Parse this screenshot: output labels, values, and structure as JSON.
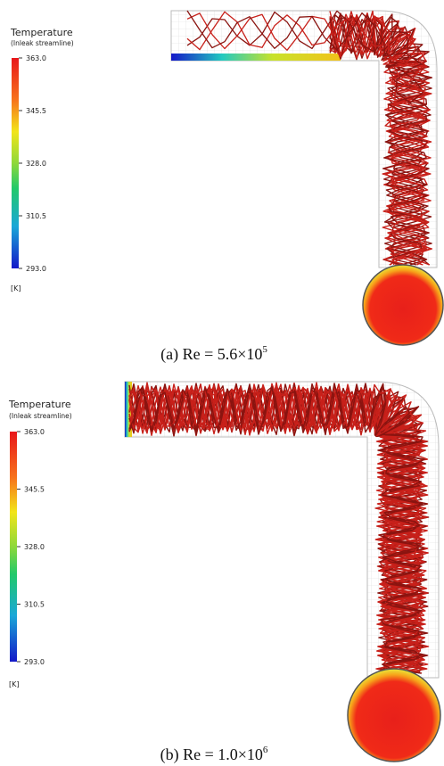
{
  "panels": [
    {
      "legend": {
        "title": "Temperature",
        "subtitle": "(Inleak streamline)",
        "ticks": [
          "363.0",
          "345.5",
          "328.0",
          "310.5",
          "293.0"
        ],
        "unit": "[K]"
      },
      "caption": {
        "text": "(a) Re = 5.6×10",
        "exponent": "5"
      }
    },
    {
      "legend": {
        "title": "Temperature",
        "subtitle": "(Inleak streamline)",
        "ticks": [
          "363.0",
          "345.5",
          "328.0",
          "310.5",
          "293.0"
        ],
        "unit": "[K]"
      },
      "caption": {
        "text": "(b) Re = 1.0×10",
        "exponent": "6"
      }
    }
  ]
}
